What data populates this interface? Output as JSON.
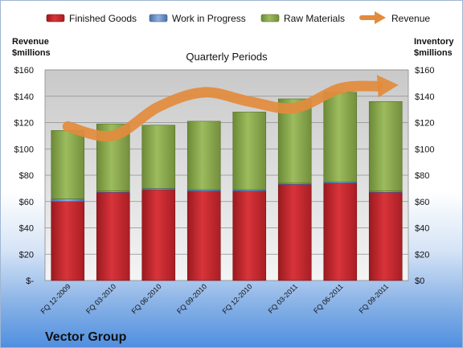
{
  "chart_data": {
    "type": "bar",
    "subtitle": "Quarterly Periods",
    "company": "Vector Group",
    "left_axis_title": [
      "Revenue",
      "$millions"
    ],
    "right_axis_title": [
      "Inventory",
      "$millions"
    ],
    "ylim": [
      0,
      160
    ],
    "y_ticks": [
      0,
      20,
      40,
      60,
      80,
      100,
      120,
      140,
      160
    ],
    "left_tick_labels": [
      "$-",
      "$20",
      "$40",
      "$60",
      "$80",
      "$100",
      "$120",
      "$140",
      "$160"
    ],
    "right_tick_labels": [
      "$0",
      "$20",
      "$40",
      "$60",
      "$80",
      "$100",
      "$120",
      "$140",
      "$160"
    ],
    "categories": [
      "FQ 12-2009",
      "FQ 03-2010",
      "FQ 06-2010",
      "FQ 09-2010",
      "FQ 12-2010",
      "FQ 03-2011",
      "FQ 06-2011",
      "FQ 09-2011"
    ],
    "series": [
      {
        "name": "Finished Goods",
        "kind": "stacked-bar",
        "color": "#c0262c",
        "values": [
          60,
          67,
          69,
          68,
          68,
          73,
          74,
          67
        ]
      },
      {
        "name": "Work in Progress",
        "kind": "stacked-bar",
        "color": "#6b8fc7",
        "values": [
          2,
          1,
          1,
          1,
          1,
          1,
          1,
          1
        ]
      },
      {
        "name": "Raw Materials",
        "kind": "stacked-bar",
        "color": "#84a44a",
        "values": [
          52,
          51,
          48,
          52,
          59,
          64,
          68,
          68
        ]
      },
      {
        "name": "Revenue",
        "kind": "line",
        "color": "#e38b3d",
        "values": [
          117,
          110,
          132,
          143,
          136,
          131,
          146,
          148
        ]
      }
    ],
    "legend_position": "top",
    "grid": true
  }
}
